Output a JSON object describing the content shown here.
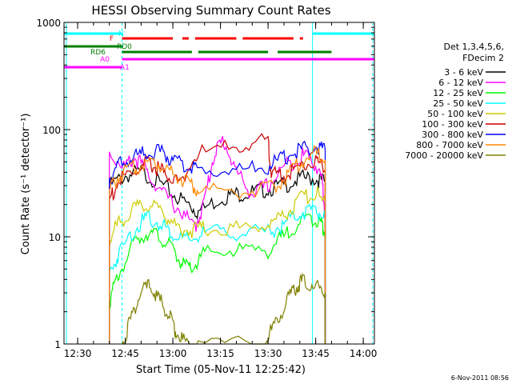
{
  "chart_data": {
    "type": "line",
    "title": "HESSI Observing Summary Count Rates",
    "xlabel": "Start Time (05-Nov-11 12:25:42)",
    "ylabel": "Count Rate (s⁻¹ detector⁻¹)",
    "y_scale": "log",
    "ylim": [
      1,
      1000
    ],
    "xlim": [
      "12:25:42",
      "14:03:30"
    ],
    "x_ticks": [
      "12:30",
      "12:45",
      "13:00",
      "13:15",
      "13:30",
      "13:45",
      "14:00"
    ],
    "y_ticks": [
      "1",
      "10",
      "100",
      "1000"
    ],
    "timestamp": "6-Nov-2011 08:56",
    "legend": {
      "placement": "right",
      "header": [
        "Det 1,3,4,5,6,",
        "FDecim 2"
      ]
    },
    "series": [
      {
        "name": "3 - 6 keV",
        "color": "#000000",
        "x": [
          "12:40",
          "12:45",
          "12:50",
          "12:55",
          "13:00",
          "13:05",
          "13:08",
          "13:15",
          "13:20",
          "13:25",
          "13:30",
          "13:35",
          "13:40",
          "13:45",
          "13:48"
        ],
        "y": [
          30,
          37,
          40,
          33,
          25,
          20,
          17,
          23,
          25,
          26,
          28,
          30,
          35,
          35,
          32
        ]
      },
      {
        "name": "6 - 12 keV",
        "color": "#ff00ff",
        "x": [
          "12:40",
          "12:45",
          "12:48",
          "12:52",
          "12:57",
          "13:02",
          "13:07",
          "13:10",
          "13:13",
          "13:16",
          "13:20",
          "13:25",
          "13:30",
          "13:35",
          "13:40",
          "13:43",
          "13:47",
          "13:48"
        ],
        "y": [
          60,
          45,
          55,
          40,
          25,
          18,
          12,
          22,
          60,
          80,
          40,
          25,
          30,
          45,
          55,
          60,
          35,
          15
        ]
      },
      {
        "name": "12 - 25 keV",
        "color": "#00ff00",
        "x": [
          "12:40",
          "12:43",
          "12:48",
          "12:52",
          "12:56",
          "13:00",
          "13:03",
          "13:06",
          "13:10",
          "13:20",
          "13:30",
          "13:35",
          "13:40",
          "13:45",
          "13:47",
          "13:48"
        ],
        "y": [
          2.5,
          4.5,
          9,
          11,
          10,
          7.5,
          5.5,
          5,
          7,
          7.5,
          7.5,
          10,
          14,
          15,
          13,
          11
        ]
      },
      {
        "name": "25 - 50 keV",
        "color": "#00ffff",
        "x": [
          "12:40",
          "12:43",
          "12:48",
          "12:52",
          "12:57",
          "13:00",
          "13:05",
          "13:10",
          "13:20",
          "13:30",
          "13:35",
          "13:40",
          "13:45",
          "13:48"
        ],
        "y": [
          4.5,
          7,
          12,
          15,
          13,
          10.5,
          9,
          11,
          11,
          11,
          13,
          17,
          18,
          15
        ]
      },
      {
        "name": "50 - 100 keV",
        "color": "#cccc00",
        "x": [
          "12:40",
          "12:43",
          "12:48",
          "12:52",
          "12:57",
          "13:00",
          "13:05",
          "13:10",
          "13:20",
          "13:30",
          "13:35",
          "13:40",
          "13:45",
          "13:48"
        ],
        "y": [
          9,
          14,
          18,
          20,
          17,
          13,
          11.5,
          12,
          12,
          13,
          16,
          22,
          26,
          20
        ]
      },
      {
        "name": "100 - 300 keV",
        "color": "#cc0000",
        "x": [
          "12:40",
          "12:43",
          "12:48",
          "12:52",
          "12:55",
          "12:58",
          "13:02",
          "13:08",
          "13:20",
          "13:30",
          "13:31",
          "13:35",
          "13:40",
          "13:45",
          "13:48"
        ],
        "y": [
          22,
          33,
          40,
          48,
          44,
          38,
          32,
          60,
          70,
          80,
          38,
          38,
          45,
          52,
          42
        ]
      },
      {
        "name": "300 - 800 keV",
        "color": "#0000ff",
        "x": [
          "12:40",
          "12:43",
          "12:48",
          "12:52",
          "12:57",
          "13:00",
          "13:05",
          "13:08",
          "13:20",
          "13:30",
          "13:35",
          "13:40",
          "13:45",
          "13:48"
        ],
        "y": [
          35,
          47,
          55,
          62,
          60,
          50,
          45,
          42,
          42,
          45,
          55,
          65,
          70,
          65
        ]
      },
      {
        "name": "800 - 7000 keV",
        "color": "#ff8800",
        "x": [
          "12:40",
          "12:43",
          "12:48",
          "12:52",
          "12:57",
          "13:00",
          "13:05",
          "13:08",
          "13:20",
          "13:30",
          "13:35",
          "13:40",
          "13:45",
          "13:48"
        ],
        "y": [
          27,
          37,
          44,
          50,
          47,
          40,
          32,
          27,
          27,
          27,
          35,
          50,
          60,
          52
        ]
      },
      {
        "name": "7000 - 20000 keV",
        "color": "#808000",
        "x": [
          "12:44",
          "12:47",
          "12:50",
          "12:53",
          "12:56",
          "12:59",
          "13:01",
          "13:04",
          "13:08",
          "13:29",
          "13:32",
          "13:36",
          "13:39",
          "13:41",
          "13:45",
          "13:48"
        ],
        "y": [
          1,
          1.8,
          3,
          3.5,
          2.5,
          1.8,
          1.3,
          1,
          1,
          1,
          1.5,
          2.5,
          3.5,
          3.8,
          3.5,
          3
        ]
      }
    ],
    "state_bars": [
      {
        "label": "N",
        "color": "#00ffff",
        "segments": [
          [
            "12:25:42",
            "12:44"
          ],
          [
            "13:44",
            "14:03:30"
          ]
        ]
      },
      {
        "label": "F",
        "color": "#ff0000",
        "segments": [
          [
            "12:44",
            "13:00"
          ],
          [
            "13:03",
            "13:05"
          ],
          [
            "13:07",
            "13:20"
          ],
          [
            "13:22",
            "13:38"
          ],
          [
            "13:40",
            "13:41"
          ]
        ]
      },
      {
        "label": "RD0",
        "color": "#008000",
        "segments": [
          [
            "12:25:42",
            "12:44"
          ]
        ]
      },
      {
        "label": "RD6",
        "color": "#008000",
        "segments": [
          [
            "12:44",
            "13:06"
          ],
          [
            "13:08",
            "13:30"
          ],
          [
            "13:33",
            "13:50"
          ]
        ]
      },
      {
        "label": "A0",
        "color": "#ff00ff",
        "segments": [
          [
            "12:44",
            "14:03:30"
          ]
        ]
      },
      {
        "label": "A1",
        "color": "#ff00ff",
        "segments": [
          [
            "12:25:42",
            "12:44"
          ]
        ]
      }
    ],
    "vertical_markers": [
      {
        "time": "12:44",
        "color": "#00ffff",
        "style": "dashed"
      },
      {
        "time": "13:44",
        "color": "#00ffff",
        "style": "solid"
      },
      {
        "time": "14:03",
        "color": "#00ffff",
        "style": "dashed"
      }
    ]
  }
}
